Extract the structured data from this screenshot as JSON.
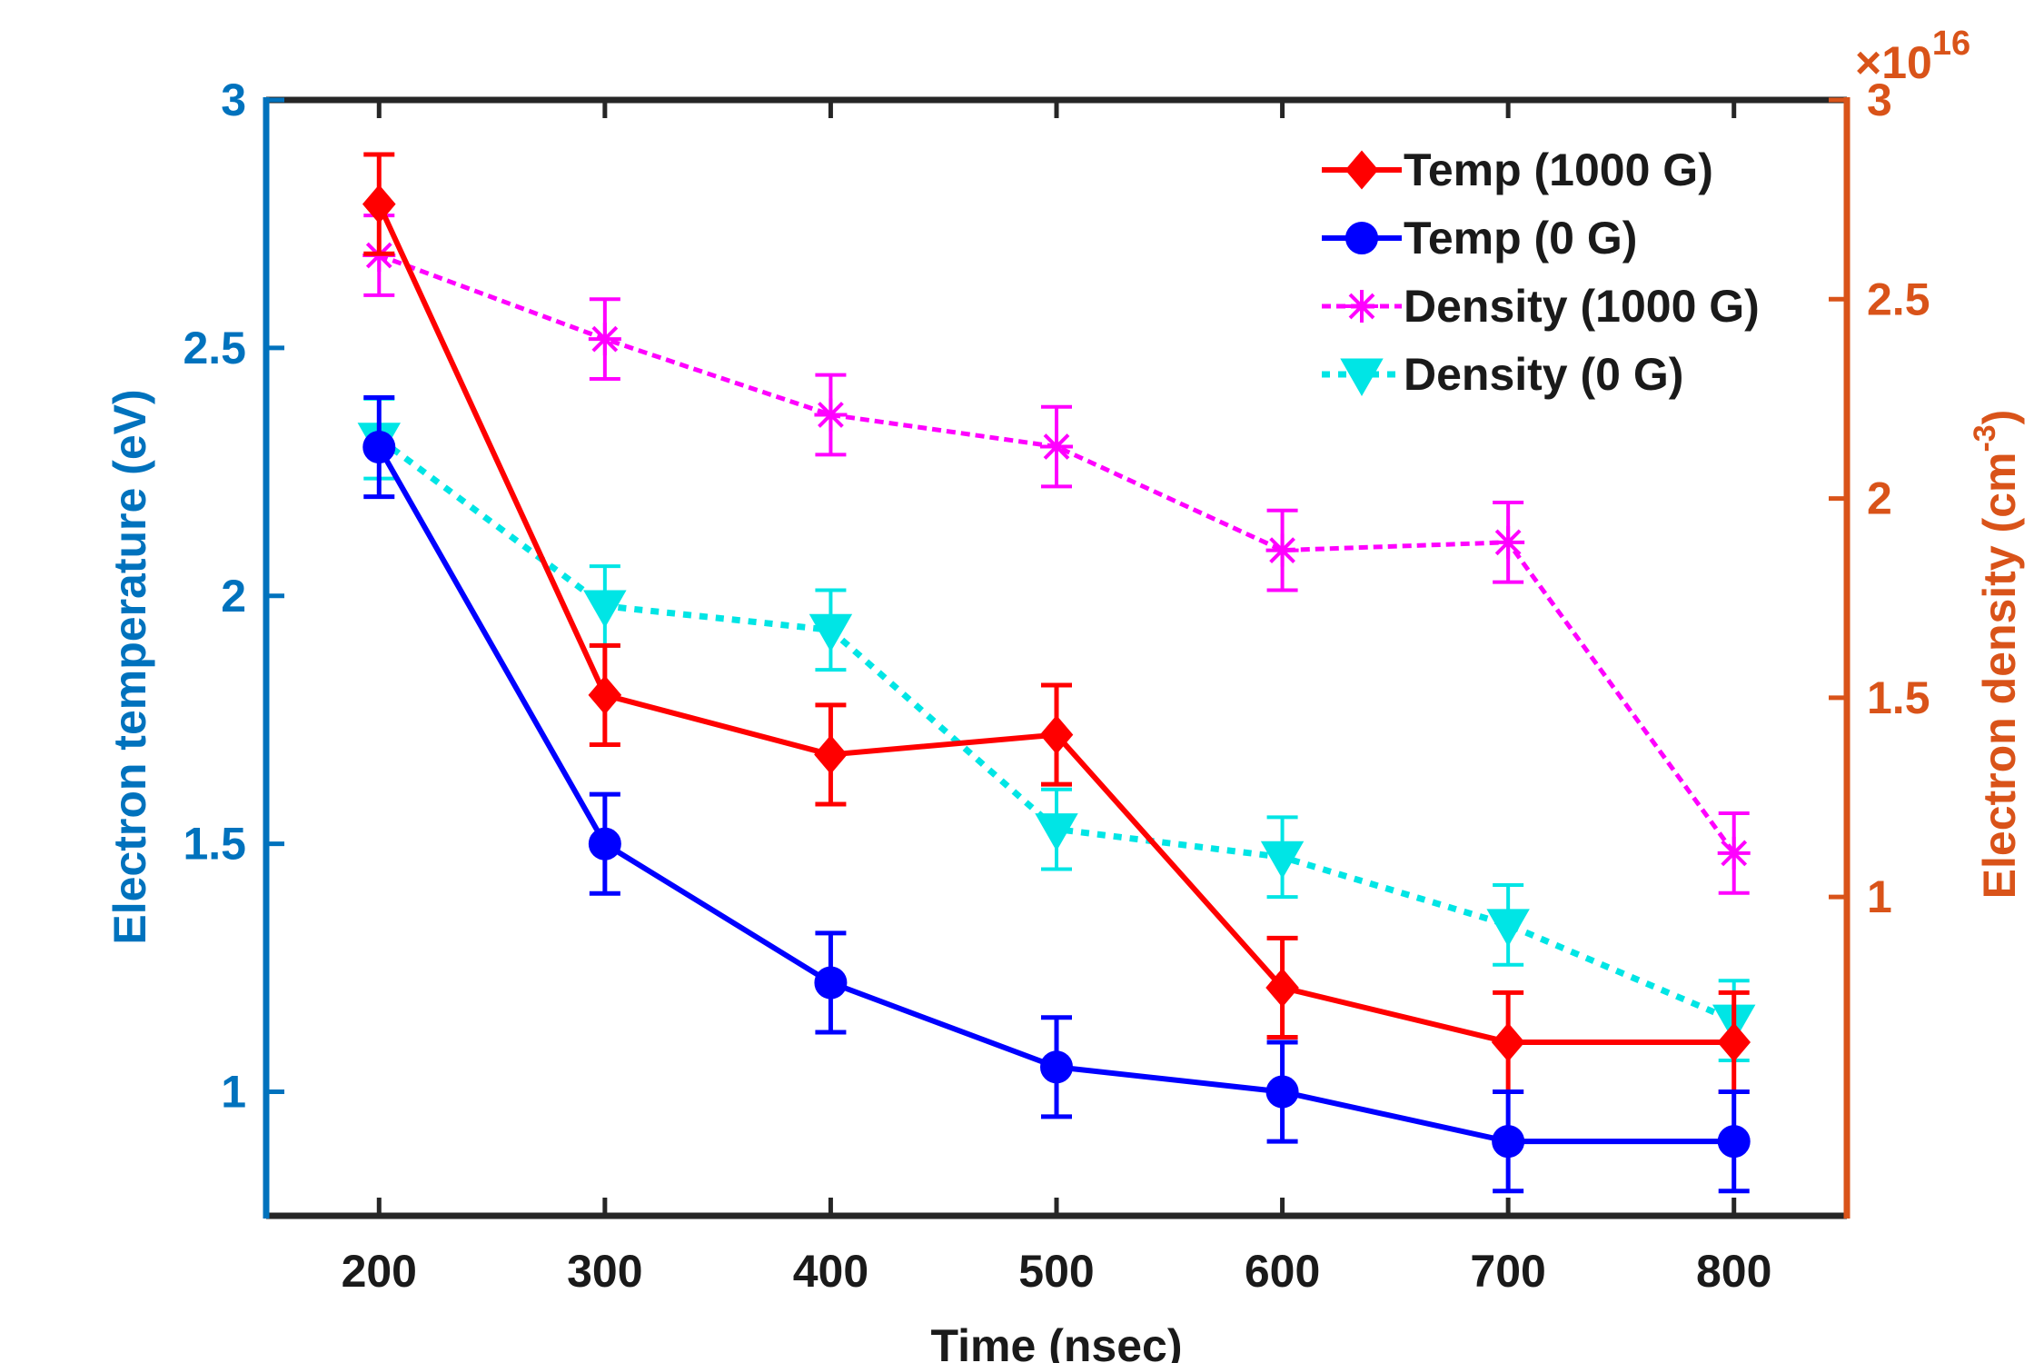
{
  "chart_data": {
    "type": "line",
    "xlabel": "Time (nsec)",
    "ylabel_left": "Electron temperature (eV)",
    "ylabel_right": "Electron density (cm",
    "ylabel_right_sup": "-3",
    "right_exponent_prefix": "×10",
    "right_exponent_power": "16",
    "x": [
      200,
      300,
      400,
      500,
      600,
      700,
      800
    ],
    "xlim": [
      150,
      850
    ],
    "xticks": [
      "200",
      "300",
      "400",
      "500",
      "600",
      "700",
      "800"
    ],
    "ylim_left": [
      0.75,
      3.0
    ],
    "yticks_left": [
      {
        "value": 1,
        "label": "1"
      },
      {
        "value": 1.5,
        "label": "1.5"
      },
      {
        "value": 2,
        "label": "2"
      },
      {
        "value": 2.5,
        "label": "2.5"
      },
      {
        "value": 3,
        "label": "3"
      }
    ],
    "ylim_right": [
      0.2,
      3.0
    ],
    "yticks_right": [
      {
        "value": 1,
        "label": "1"
      },
      {
        "value": 1.5,
        "label": "1.5"
      },
      {
        "value": 2,
        "label": "2"
      },
      {
        "value": 2.5,
        "label": "2.5"
      },
      {
        "value": 3,
        "label": "3"
      }
    ],
    "legend_position": "top-right",
    "series": [
      {
        "name": "Temp (1000 G)",
        "axis": "left",
        "color": "#ff0000",
        "marker": "diamond",
        "line": "solid",
        "values": [
          2.79,
          1.8,
          1.68,
          1.72,
          1.21,
          1.1,
          1.1
        ],
        "errors": [
          0.1,
          0.1,
          0.1,
          0.1,
          0.1,
          0.1,
          0.1
        ]
      },
      {
        "name": "Temp (0 G)",
        "axis": "left",
        "color": "#0000ff",
        "marker": "circle",
        "line": "solid",
        "values": [
          2.3,
          1.5,
          1.22,
          1.05,
          1.0,
          0.9,
          0.9
        ],
        "errors": [
          0.1,
          0.1,
          0.1,
          0.1,
          0.1,
          0.1,
          0.1
        ]
      },
      {
        "name": "Density (1000 G)",
        "axis": "right",
        "color": "#ff00ff",
        "marker": "asterisk",
        "line": "dashed",
        "values": [
          2.61,
          2.4,
          2.21,
          2.13,
          1.87,
          1.89,
          1.11
        ],
        "errors": [
          0.1,
          0.1,
          0.1,
          0.1,
          0.1,
          0.1,
          0.1
        ]
      },
      {
        "name": "Density (0 G)",
        "axis": "right",
        "color": "#00e5e5",
        "marker": "triangle-down",
        "line": "dotted",
        "values": [
          2.15,
          1.73,
          1.67,
          1.17,
          1.1,
          0.93,
          0.69
        ],
        "errors": [
          0.1,
          0.1,
          0.1,
          0.1,
          0.1,
          0.1,
          0.1
        ]
      }
    ],
    "colors": {
      "left_axis": "#0072bd",
      "right_axis": "#d95319",
      "frame": "#262626"
    }
  }
}
